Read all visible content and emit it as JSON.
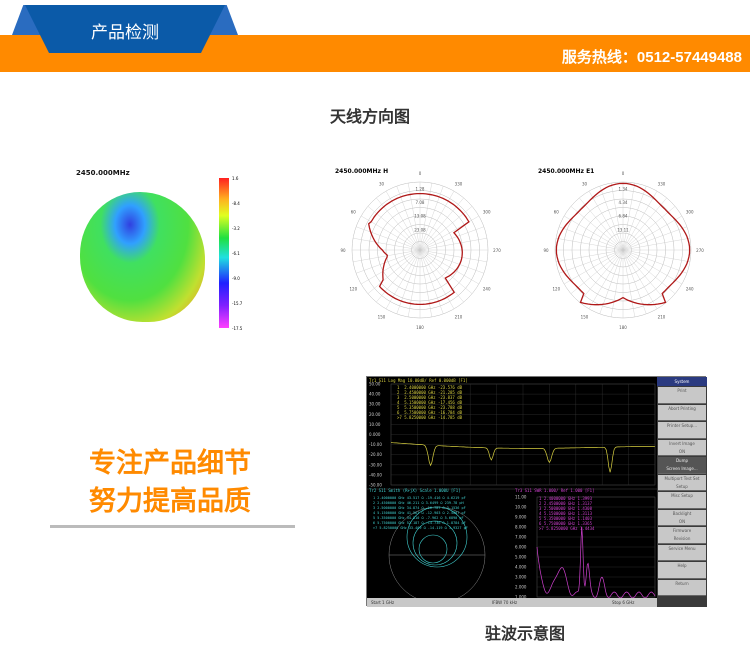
{
  "header": {
    "tab_title": "产品检测",
    "hotline": "服务热线：0512-57449488",
    "colors": {
      "tab": "#0b5aa8",
      "bar": "#ff8a00"
    }
  },
  "section1": {
    "title": "天线方向图",
    "plot3d": {
      "title": "2450.000MHz",
      "scale": [
        "1.6",
        "-8.4",
        "-3.2",
        "-6.1",
        "-9.0",
        "-15.7",
        "-17.5"
      ]
    },
    "polar_h": {
      "title": "2450.000MHz  H",
      "angles": [
        "0",
        "30",
        "60",
        "90",
        "120",
        "150",
        "180",
        "210",
        "240",
        "270",
        "300",
        "330"
      ],
      "rings": [
        "1.28",
        "7.08",
        "13.08",
        "23.08"
      ]
    },
    "polar_e": {
      "title": "2450.000MHz  E1",
      "angles": [
        "0",
        "30",
        "60",
        "90",
        "120",
        "150",
        "180",
        "210",
        "240",
        "270",
        "300",
        "330"
      ],
      "rings": [
        "1.34",
        "4.34",
        "6.84",
        "13.11"
      ]
    }
  },
  "slogan": {
    "line1": "专注产品细节",
    "line2": "努力提高品质"
  },
  "vna": {
    "trace1_header": "Tr1 S11 Log Mag 10.00dB/ Ref 0.000dB [F1]",
    "trace1_markers": "1  2.4000000 GHz -23.576 dB\n2  2.4500000 GHz -21.285 dB\n3  2.5000000 GHz -23.837 dB\n4  5.1500000 GHz -17.456 dB\n5  5.3500000 GHz -23.788 dB\n6  5.7500000 GHz -16.784 dB\n>7 5.8250000 GHz -14.785 dB",
    "trace1_yticks": [
      "50.00",
      "40.00",
      "30.00",
      "20.00",
      "10.00",
      "0.000",
      "-10.00",
      "-20.00",
      "-30.00",
      "-40.00",
      "-50.00"
    ],
    "trace2_header": "Tr2 S11 Smith (R+jX) Scale 1.000U [F1]",
    "trace2_markers": "1 2.4000000 GHz 43.517 Ω -19.416 Ω 4.6219 pF\n2 2.4500000 GHz 46.211 Ω 3.6499 Ω 239.78 pH\n3 2.5000000 GHz 34.874 Ω -16.787 Ω 3.1536 pF\n4 5.1500000 GHz 41.567 Ω -12.903 Ω 2.5087 pF\n5 5.3500000 GHz 34.810 Ω -7.962 Ω 5.6890 pF\n6 5.7500000 GHz 52.187 Ω -14.736 Ω 1.8784 pF\n>7 5.8250000 GHz 33.409 Ω -14.119 Ω 1.9327 pF",
    "trace3_header": "Tr3 S11 SWR 1.000/ Ref 1.000 [F1]",
    "trace3_markers": "1 2.4000000 GHz 1.3993\n2 2.4500000 GHz 1.3137\n3 2.5000000 GHz 1.4308\n4 5.1500000 GHz 1.3113\n5 5.3500000 GHz 1.1403\n6 5.7500000 GHz 1.3365\n>7 5.8250000 GHz 1.4434",
    "trace3_yticks": [
      "11.00",
      "10.00",
      "9.000",
      "8.000",
      "7.000",
      "6.000",
      "5.000",
      "4.000",
      "3.000",
      "2.000",
      "1.000"
    ],
    "footer": {
      "start": "Start 1 GHz",
      "ifbw": "IFBW 70 kHz",
      "stop": "Stop 6 GHz"
    },
    "menu": {
      "title": "System",
      "items": [
        "Print",
        "Abort Printing",
        "Printer Setup...",
        "Invert Image\nON",
        "Dump\nScreen Image...",
        "Multiport Test Set\nSetup",
        "Misc Setup",
        "Backlight\nON",
        "Firmware\nRevision",
        "Service Menu",
        "Help",
        "Return"
      ]
    },
    "colors": {
      "trace1": "#d8d040",
      "smith": "#40d0d0",
      "swr": "#d040d0"
    }
  },
  "section2": {
    "title": "驻波示意图"
  }
}
